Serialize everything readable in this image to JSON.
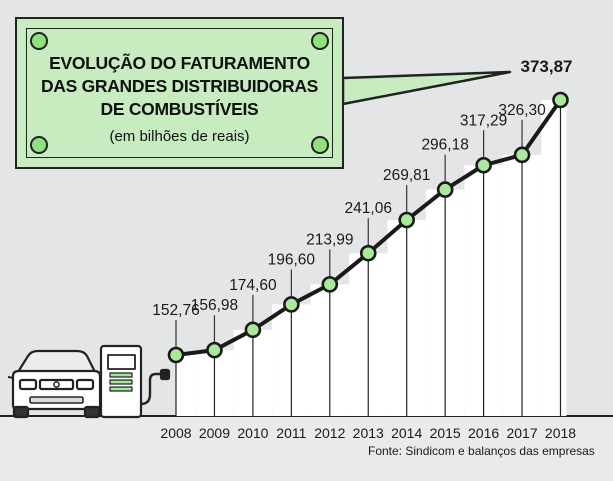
{
  "chart_data": {
    "type": "line",
    "title_lines": [
      "EVOLUÇÃO DO FATURAMENTO",
      "DAS GRANDES DISTRIBUIDORAS",
      "DE COMBUSTÍVEIS"
    ],
    "subtitle": "(em bilhões de reais)",
    "categories": [
      "2008",
      "2009",
      "2010",
      "2011",
      "2012",
      "2013",
      "2014",
      "2015",
      "2016",
      "2017",
      "2018"
    ],
    "values": [
      152.76,
      156.98,
      174.6,
      196.6,
      213.99,
      241.06,
      269.81,
      296.18,
      317.29,
      326.3,
      373.87
    ],
    "value_labels": [
      "152,76",
      "156,98",
      "174,60",
      "196,60",
      "213,99",
      "241,06",
      "269,81",
      "296,18",
      "317,29",
      "326,30",
      "373,87"
    ],
    "source": "Fonte: Sindicom e balanços das empresas",
    "grid": false,
    "colors": {
      "line": "#1a1a1a",
      "marker_fill": "#a8ea98",
      "title_box": "#c6ecc0",
      "background": "#e4e5e6"
    }
  },
  "decorations": {
    "left_icons": [
      "car-icon",
      "fuel-pump-icon"
    ]
  }
}
